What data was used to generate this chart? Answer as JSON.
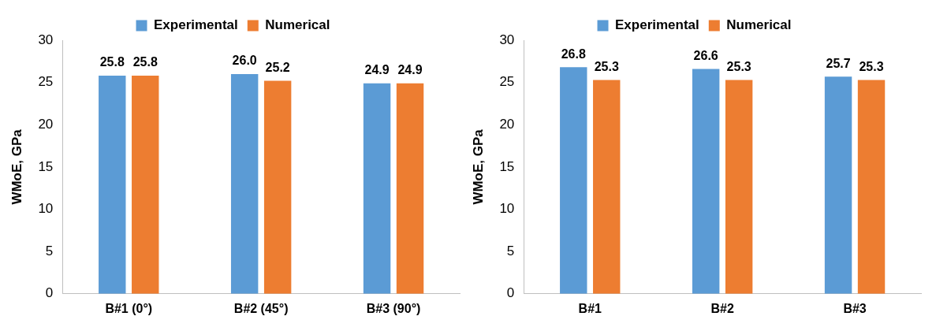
{
  "chart_data": [
    {
      "type": "bar",
      "categories": [
        "B#1 (0°)",
        "B#2 (45°)",
        "B#3 (90°)"
      ],
      "ylabel": "WMoE, GPa",
      "ylim": [
        0,
        30
      ],
      "yticks": [
        0,
        5,
        10,
        15,
        20,
        25,
        30
      ],
      "grid": false,
      "legend": "top",
      "series": [
        {
          "name": "Experimental",
          "color": "#5b9bd5",
          "values": [
            25.8,
            26.0,
            24.9
          ],
          "value_labels": [
            "25.8",
            "26.0",
            "24.9"
          ]
        },
        {
          "name": "Numerical",
          "color": "#ed7d31",
          "values": [
            25.8,
            25.2,
            24.9
          ],
          "value_labels": [
            "25.8",
            "25.2",
            "24.9"
          ]
        }
      ]
    },
    {
      "type": "bar",
      "categories": [
        "B#1",
        "B#2",
        "B#3"
      ],
      "ylabel": "WMoE, GPa",
      "ylim": [
        0,
        30
      ],
      "yticks": [
        0,
        5,
        10,
        15,
        20,
        25,
        30
      ],
      "grid": false,
      "legend": "top",
      "series": [
        {
          "name": "Experimental",
          "color": "#5b9bd5",
          "values": [
            26.8,
            26.6,
            25.7
          ],
          "value_labels": [
            "26.8",
            "26.6",
            "25.7"
          ]
        },
        {
          "name": "Numerical",
          "color": "#ed7d31",
          "values": [
            25.3,
            25.3,
            25.3
          ],
          "value_labels": [
            "25.3",
            "25.3",
            "25.3"
          ]
        }
      ]
    }
  ]
}
